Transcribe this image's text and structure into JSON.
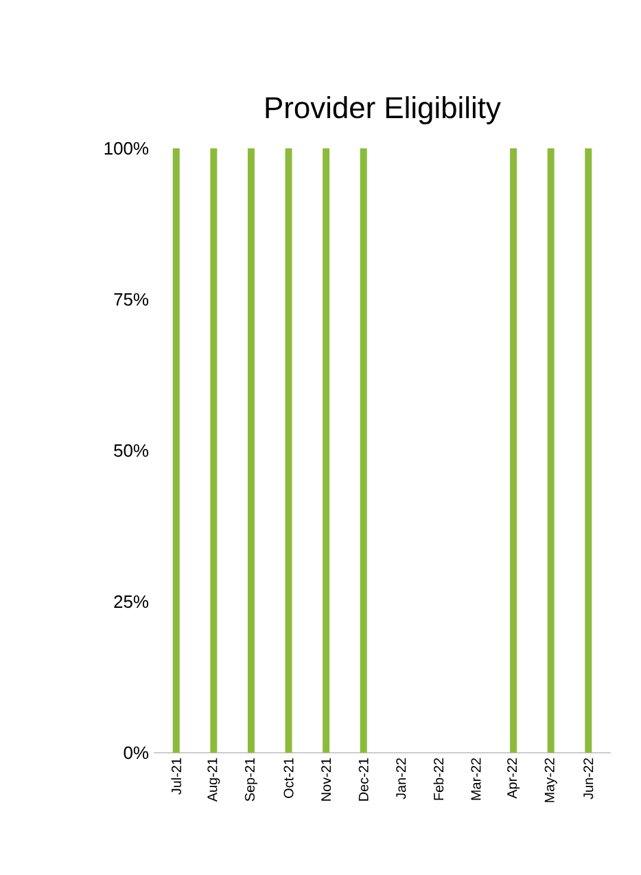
{
  "chart_data": {
    "type": "bar",
    "title": "Provider Eligibility",
    "categories": [
      "Jul-21",
      "Aug-21",
      "Sep-21",
      "Oct-21",
      "Nov-21",
      "Dec-21",
      "Jan-22",
      "Feb-22",
      "Mar-22",
      "Apr-22",
      "May-22",
      "Jun-22"
    ],
    "values": [
      100,
      100,
      100,
      100,
      100,
      100,
      0,
      0,
      0,
      100,
      100,
      100
    ],
    "color": "#8cbb3c",
    "ylim": [
      0,
      100
    ],
    "yticks": [
      {
        "value": 0,
        "label": "0%"
      },
      {
        "value": 25,
        "label": "25%"
      },
      {
        "value": 50,
        "label": "50%"
      },
      {
        "value": 75,
        "label": "75%"
      },
      {
        "value": 100,
        "label": "100%"
      }
    ]
  }
}
